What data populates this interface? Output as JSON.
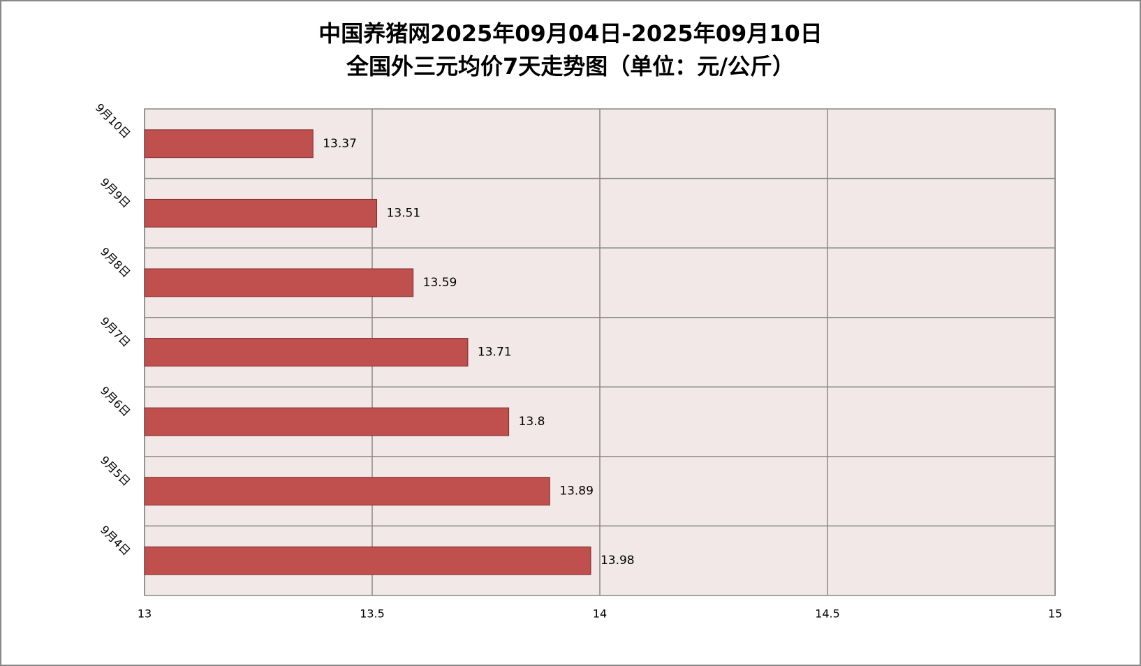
{
  "chart_data": {
    "type": "bar",
    "orientation": "horizontal",
    "title": [
      "中国养猪网2025年09月04日-2025年09月10日",
      "全国外三元均价7天走势图（单位：元/公斤）"
    ],
    "categories": [
      "9月10日",
      "9月9日",
      "9月8日",
      "9月7日",
      "9月6日",
      "9月5日",
      "9月4日"
    ],
    "values": [
      13.37,
      13.51,
      13.59,
      13.71,
      13.8,
      13.89,
      13.98
    ],
    "color": "#c0504d",
    "xlim": [
      13,
      15
    ],
    "xticks": [
      13,
      13.5,
      14,
      14.5,
      15
    ],
    "grid": true
  }
}
